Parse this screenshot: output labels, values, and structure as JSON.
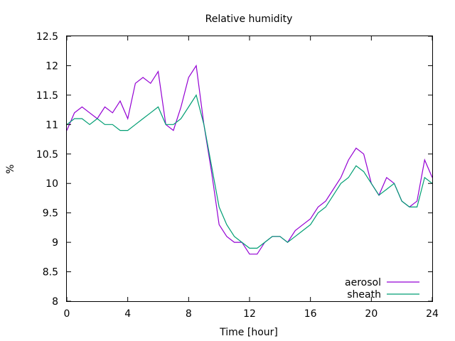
{
  "chart_data": {
    "type": "line",
    "title": "Relative humidity",
    "xlabel": "Time [hour]",
    "ylabel": "%",
    "xlim": [
      0,
      24
    ],
    "ylim": [
      8,
      12.5
    ],
    "xticks": [
      0,
      4,
      8,
      12,
      16,
      20,
      24
    ],
    "xtick_labels": [
      "0",
      "4",
      "8",
      "12",
      "16",
      "20",
      "24"
    ],
    "yticks": [
      8,
      8.5,
      9,
      9.5,
      10,
      10.5,
      11,
      11.5,
      12,
      12.5
    ],
    "ytick_labels": [
      "8",
      "8.5",
      "9",
      "9.5",
      "10",
      "10.5",
      "11",
      "11.5",
      "12",
      "12.5"
    ],
    "grid": false,
    "legend_position": "bottom-right",
    "series": [
      {
        "name": "aerosol",
        "color": "#9400d3",
        "x": [
          0,
          0.5,
          1,
          1.5,
          2,
          2.5,
          3,
          3.5,
          4,
          4.5,
          5,
          5.5,
          6,
          6.5,
          7,
          7.5,
          8,
          8.5,
          9,
          9.5,
          10,
          10.5,
          11,
          11.5,
          12,
          12.5,
          13,
          13.5,
          14,
          14.5,
          15,
          15.5,
          16,
          16.5,
          17,
          17.5,
          18,
          18.5,
          19,
          19.5,
          20,
          20.5,
          21,
          21.5,
          22,
          22.5,
          23,
          23.5,
          24
        ],
        "values": [
          10.9,
          11.2,
          11.3,
          11.2,
          11.1,
          11.3,
          11.2,
          11.4,
          11.1,
          11.7,
          11.8,
          11.7,
          11.9,
          11.0,
          10.9,
          11.3,
          11.8,
          12.0,
          11.0,
          10.2,
          9.3,
          9.1,
          9.0,
          9.0,
          8.8,
          8.8,
          9.0,
          9.1,
          9.1,
          9.0,
          9.2,
          9.3,
          9.4,
          9.6,
          9.7,
          9.9,
          10.1,
          10.4,
          10.6,
          10.5,
          10.0,
          9.8,
          10.1,
          10.0,
          9.7,
          9.6,
          9.7,
          10.4,
          10.1
        ]
      },
      {
        "name": "sheath",
        "color": "#009e73",
        "x": [
          0,
          0.5,
          1,
          1.5,
          2,
          2.5,
          3,
          3.5,
          4,
          4.5,
          5,
          5.5,
          6,
          6.5,
          7,
          7.5,
          8,
          8.5,
          9,
          9.5,
          10,
          10.5,
          11,
          11.5,
          12,
          12.5,
          13,
          13.5,
          14,
          14.5,
          15,
          15.5,
          16,
          16.5,
          17,
          17.5,
          18,
          18.5,
          19,
          19.5,
          20,
          20.5,
          21,
          21.5,
          22,
          22.5,
          23,
          23.5,
          24
        ],
        "values": [
          11.0,
          11.1,
          11.1,
          11.0,
          11.1,
          11.0,
          11.0,
          10.9,
          10.9,
          11.0,
          11.1,
          11.2,
          11.3,
          11.0,
          11.0,
          11.1,
          11.3,
          11.5,
          11.0,
          10.3,
          9.6,
          9.3,
          9.1,
          9.0,
          8.9,
          8.9,
          9.0,
          9.1,
          9.1,
          9.0,
          9.1,
          9.2,
          9.3,
          9.5,
          9.6,
          9.8,
          10.0,
          10.1,
          10.3,
          10.2,
          10.0,
          9.8,
          9.9,
          10.0,
          9.7,
          9.6,
          9.6,
          10.1,
          10.0
        ]
      }
    ]
  }
}
